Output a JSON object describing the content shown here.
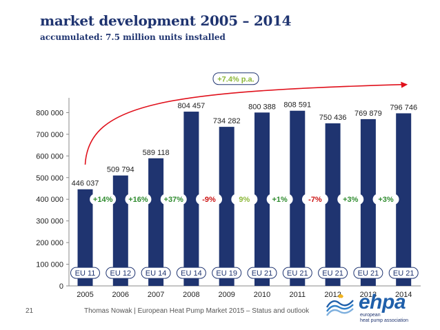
{
  "header": {
    "title": "market development 2005 – 2014",
    "subtitle": "accumulated: 7.5 million units installed"
  },
  "chart_data": {
    "type": "bar",
    "categories": [
      "2005",
      "2006",
      "2007",
      "2008",
      "2009",
      "2010",
      "2011",
      "2012",
      "2013",
      "2014"
    ],
    "values": [
      446037,
      509794,
      589118,
      804457,
      734282,
      800388,
      808591,
      750436,
      769879,
      796746
    ],
    "value_labels": [
      "446 037",
      "509 794",
      "589 118",
      "804 457",
      "734 282",
      "800 388",
      "808 591",
      "750 436",
      "769 879",
      "796 746"
    ],
    "growth_labels": [
      "+14%",
      "+16%",
      "+37%",
      "-9%",
      "9%",
      "+1%",
      "-7%",
      "+3%",
      "+3%"
    ],
    "growth_colors": [
      "#2e8b2e",
      "#2e8b2e",
      "#2e8b2e",
      "#cc1111",
      "#8db83a",
      "#2e8b2e",
      "#cc1111",
      "#2e8b2e",
      "#2e8b2e"
    ],
    "eu_labels": [
      "EU 11",
      "EU 12",
      "EU 14",
      "EU 14",
      "EU 19",
      "EU 21",
      "EU 21",
      "EU 21",
      "EU 21",
      "EU 21"
    ],
    "trend_label": "+7.4% p.a.",
    "yticks": [
      "0",
      "100 000",
      "200 000",
      "300 000",
      "400 000",
      "500 000",
      "600 000",
      "700 000",
      "800 000"
    ],
    "ylim": [
      0,
      900000
    ],
    "ylabel": "",
    "xlabel": "",
    "bar_color": "#1f3470",
    "trend_color": "#e0101b",
    "grid": false
  },
  "footer": {
    "page": "21",
    "text": "Thomas Nowak | European Heat Pump Market 2015 – Status and outlook"
  },
  "logo": {
    "word": "ehpa",
    "line1": "european",
    "line2": "heat pump association"
  }
}
